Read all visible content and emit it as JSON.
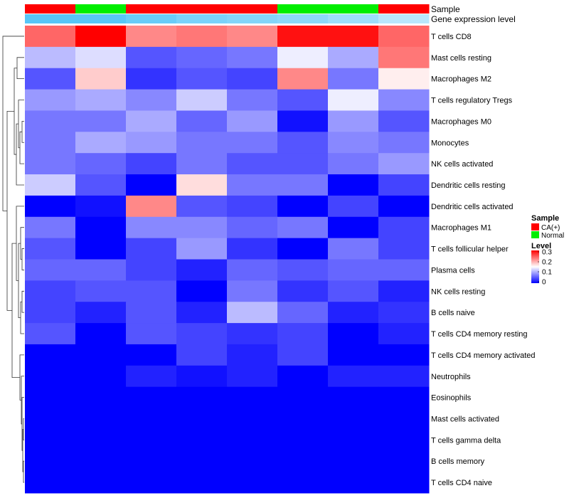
{
  "chart_data": {
    "type": "heatmap",
    "annotation_labels": {
      "sample": "Sample",
      "gene_expression": "Gene expression level"
    },
    "columns": [
      {
        "sample": "CA(+)",
        "gene_expression": 0.95
      },
      {
        "sample": "Normal",
        "gene_expression": 0.95
      },
      {
        "sample": "CA(+)",
        "gene_expression": 0.85
      },
      {
        "sample": "CA(+)",
        "gene_expression": 0.75
      },
      {
        "sample": "CA(+)",
        "gene_expression": 0.7
      },
      {
        "sample": "Normal",
        "gene_expression": 0.65
      },
      {
        "sample": "Normal",
        "gene_expression": 0.55
      },
      {
        "sample": "CA(+)",
        "gene_expression": 0.4
      }
    ],
    "rows": [
      "T cells CD8",
      "Mast cells resting",
      "Macrophages M2",
      "T cells regulatory  Tregs",
      "Macrophages M0",
      "Monocytes",
      "NK cells activated",
      "Dendritic cells resting",
      "Dendritic cells activated",
      "Macrophages M1",
      "T cells follicular helper",
      "Plasma cells",
      "NK cells resting",
      "B cells naive",
      "T cells CD4 memory resting",
      "T cells CD4 memory activated",
      "Neutrophils",
      "Eosinophils",
      "Mast cells activated",
      "T cells gamma delta",
      "B cells memory",
      "T cells CD4 naive"
    ],
    "values": [
      [
        0.24,
        0.3,
        0.22,
        0.23,
        0.22,
        0.29,
        0.29,
        0.24
      ],
      [
        0.11,
        0.13,
        0.05,
        0.06,
        0.07,
        0.14,
        0.1,
        0.23
      ],
      [
        0.05,
        0.18,
        0.03,
        0.05,
        0.04,
        0.22,
        0.07,
        0.16
      ],
      [
        0.09,
        0.1,
        0.08,
        0.12,
        0.07,
        0.05,
        0.14,
        0.08
      ],
      [
        0.07,
        0.07,
        0.1,
        0.06,
        0.09,
        0.01,
        0.09,
        0.05
      ],
      [
        0.07,
        0.1,
        0.09,
        0.07,
        0.07,
        0.05,
        0.08,
        0.07
      ],
      [
        0.07,
        0.06,
        0.04,
        0.07,
        0.05,
        0.05,
        0.07,
        0.09
      ],
      [
        0.12,
        0.05,
        0.0,
        0.17,
        0.07,
        0.07,
        0.0,
        0.04
      ],
      [
        0.0,
        0.01,
        0.22,
        0.05,
        0.04,
        0.0,
        0.04,
        0.0
      ],
      [
        0.07,
        0.0,
        0.08,
        0.08,
        0.06,
        0.07,
        0.0,
        0.04
      ],
      [
        0.05,
        0.0,
        0.04,
        0.09,
        0.03,
        0.0,
        0.07,
        0.04
      ],
      [
        0.06,
        0.06,
        0.04,
        0.02,
        0.06,
        0.05,
        0.06,
        0.06
      ],
      [
        0.04,
        0.05,
        0.05,
        0.0,
        0.07,
        0.03,
        0.05,
        0.02
      ],
      [
        0.04,
        0.02,
        0.05,
        0.02,
        0.11,
        0.06,
        0.02,
        0.03
      ],
      [
        0.05,
        0.0,
        0.05,
        0.04,
        0.03,
        0.04,
        0.0,
        0.02
      ],
      [
        0.0,
        0.0,
        0.0,
        0.04,
        0.02,
        0.04,
        0.0,
        0.0
      ],
      [
        0.0,
        0.0,
        0.02,
        0.01,
        0.02,
        0.0,
        0.02,
        0.02
      ],
      [
        0.0,
        0.0,
        0.0,
        0.0,
        0.0,
        0.0,
        0.0,
        0.0
      ],
      [
        0.0,
        0.0,
        0.0,
        0.0,
        0.0,
        0.0,
        0.0,
        0.0
      ],
      [
        0.0,
        0.0,
        0.0,
        0.0,
        0.0,
        0.0,
        0.0,
        0.0
      ],
      [
        0.0,
        0.0,
        0.0,
        0.0,
        0.0,
        0.0,
        0.0,
        0.0
      ],
      [
        0.0,
        0.0,
        0.0,
        0.0,
        0.0,
        0.0,
        0.0,
        0.0
      ]
    ],
    "color_scale": {
      "min": 0,
      "mid": 0.15,
      "max": 0.3,
      "low_color": "#0000ff",
      "mid_color": "#ffffff",
      "high_color": "#ff0000"
    },
    "expression_color_scale": {
      "low_color": "#ffffff",
      "high_color": "#4fc3f7"
    },
    "sample_colors": {
      "CA(+)": "#ff0000",
      "Normal": "#00ee00"
    },
    "legend": {
      "sample_title": "Sample",
      "sample_entries": [
        "CA(+)",
        "Normal"
      ],
      "level_title": "Level",
      "level_ticks": [
        "0.3",
        "0.2",
        "0.1",
        "0"
      ],
      "placement": "right"
    },
    "row_dendrogram": true
  }
}
